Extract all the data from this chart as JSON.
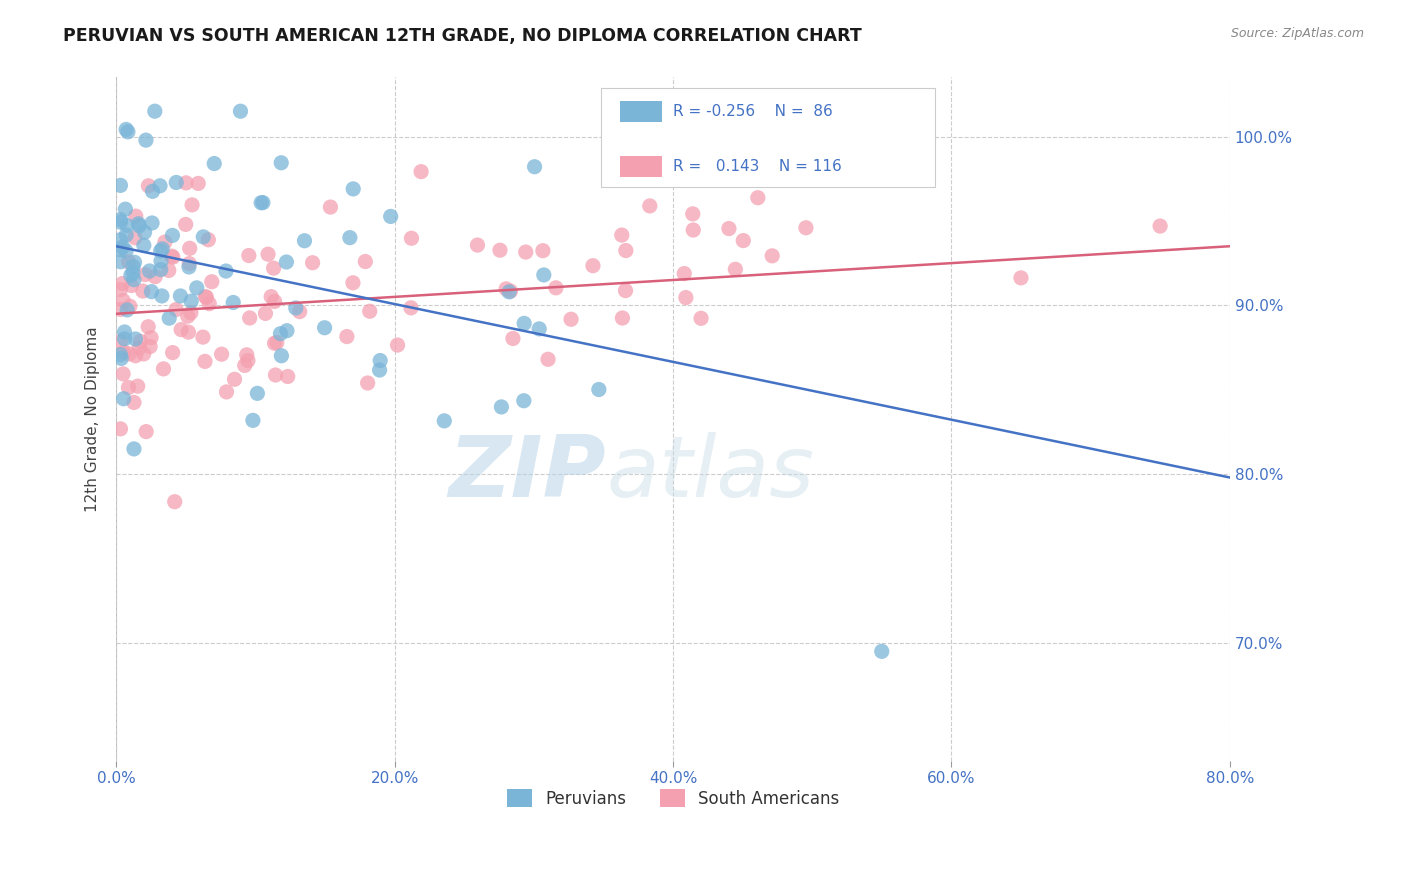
{
  "title": "PERUVIAN VS SOUTH AMERICAN 12TH GRADE, NO DIPLOMA CORRELATION CHART",
  "source": "Source: ZipAtlas.com",
  "ylabel_label": "12th Grade, No Diploma",
  "legend_label1": "Peruvians",
  "legend_label2": "South Americans",
  "R1": -0.256,
  "N1": 86,
  "R2": 0.143,
  "N2": 116,
  "xlim": [
    0.0,
    80.0
  ],
  "ylim": [
    63.0,
    103.5
  ],
  "yticks": [
    70,
    80,
    90,
    100
  ],
  "xticks": [
    0,
    20,
    40,
    60,
    80
  ],
  "blue_color": "#7ab5d8",
  "pink_color": "#f4a0b0",
  "blue_line_color": "#4472c4",
  "pink_line_color": "#d9607a",
  "watermark_zip": "ZIP",
  "watermark_atlas": "atlas",
  "background": "#ffffff",
  "blue_line_x0": 0.0,
  "blue_line_y0": 93.5,
  "blue_line_x1": 80.0,
  "blue_line_y1": 79.8,
  "pink_line_x0": 0.0,
  "pink_line_y0": 89.5,
  "pink_line_x1": 80.0,
  "pink_line_y1": 93.5,
  "grid_color": "#cccccc",
  "tick_color": "#4472c4"
}
